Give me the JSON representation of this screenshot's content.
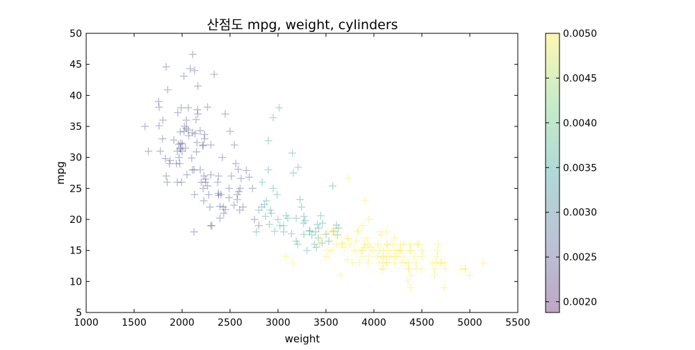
{
  "chart_data": {
    "type": "scatter",
    "title": "산점도 mpg, weight, cylinders",
    "xlabel": "weight",
    "ylabel": "mpg",
    "xlim": [
      1000,
      5500
    ],
    "ylim": [
      5,
      50
    ],
    "xticks": [
      1000,
      1500,
      2000,
      2500,
      3000,
      3500,
      4000,
      4500,
      5000,
      5500
    ],
    "yticks": [
      5,
      10,
      15,
      20,
      25,
      30,
      35,
      40,
      45,
      50
    ],
    "grid": false,
    "marker": "+",
    "marker_alpha": 0.35,
    "colorbar": {
      "range": [
        0.00188,
        0.005
      ],
      "ticks": [
        0.002,
        0.0025,
        0.003,
        0.0035,
        0.004,
        0.0045,
        0.005
      ],
      "tick_labels": [
        "0.0020",
        "0.0025",
        "0.0030",
        "0.0035",
        "0.0040",
        "0.0045",
        "0.0050"
      ],
      "colormap": "viridis",
      "colors": [
        "#440154",
        "#3b528b",
        "#21918c",
        "#5ec962",
        "#fde725"
      ]
    },
    "groups": [
      {
        "color_value": 0.0025,
        "points": [
          [
            1613,
            35
          ],
          [
            1649,
            31
          ],
          [
            1755,
            39
          ],
          [
            1760,
            35.1
          ],
          [
            1773,
            31
          ],
          [
            1795,
            33
          ],
          [
            1800,
            36
          ],
          [
            1825,
            29.8
          ],
          [
            1834,
            44.6
          ],
          [
            1835,
            27
          ],
          [
            1845,
            26
          ],
          [
            1850,
            40.9
          ],
          [
            1867,
            29
          ],
          [
            1875,
            29.5
          ],
          [
            1915,
            32.8
          ],
          [
            1940,
            29
          ],
          [
            1950,
            31
          ],
          [
            1950,
            26
          ],
          [
            1955,
            37.2
          ],
          [
            1965,
            32.1
          ],
          [
            1968,
            30
          ],
          [
            1975,
            29
          ],
          [
            1980,
            34.1
          ],
          [
            1985,
            31.3
          ],
          [
            1990,
            38
          ],
          [
            1995,
            26
          ],
          [
            2000,
            31
          ],
          [
            2003,
            32.2
          ],
          [
            2019,
            43.1
          ],
          [
            2020,
            34.2
          ],
          [
            2025,
            35
          ],
          [
            2035,
            31.5
          ],
          [
            2045,
            36
          ],
          [
            2050,
            27.2
          ],
          [
            2065,
            34.4
          ],
          [
            2070,
            33.5
          ],
          [
            2085,
            44.3
          ],
          [
            2100,
            29.9
          ],
          [
            2110,
            46.6
          ],
          [
            2125,
            28
          ],
          [
            2130,
            24
          ],
          [
            2130,
            44.0
          ],
          [
            2135,
            33.8
          ],
          [
            2145,
            36.1
          ],
          [
            2150,
            30.9
          ],
          [
            2155,
            32.4
          ],
          [
            2164,
            41.5
          ],
          [
            2160,
            37.7
          ],
          [
            2188,
            34.3
          ],
          [
            2189,
            28
          ],
          [
            2200,
            26
          ],
          [
            2215,
            31.9
          ],
          [
            2220,
            25
          ],
          [
            2226,
            23
          ],
          [
            2228,
            27
          ],
          [
            2234,
            33
          ],
          [
            2245,
            26
          ],
          [
            2265,
            25.4
          ],
          [
            2278,
            24
          ],
          [
            2290,
            22
          ],
          [
            2300,
            32
          ],
          [
            2310,
            19
          ],
          [
            2335,
            43.4
          ],
          [
            2372,
            26
          ],
          [
            2380,
            27
          ],
          [
            2395,
            20.2
          ],
          [
            2405,
            24
          ],
          [
            2420,
            30
          ],
          [
            2430,
            22
          ],
          [
            2434,
            21
          ],
          [
            2450,
            37
          ],
          [
            2490,
            25
          ],
          [
            2500,
            34.2
          ],
          [
            2515,
            27
          ],
          [
            2545,
            32
          ],
          [
            2560,
            29
          ],
          [
            2575,
            24
          ],
          [
            2585,
            28.1
          ],
          [
            2600,
            21.5
          ],
          [
            2605,
            25
          ],
          [
            2615,
            26.6
          ],
          [
            2635,
            22
          ],
          [
            2670,
            27.9
          ],
          [
            2700,
            26.8
          ],
          [
            2735,
            25
          ],
          [
            2755,
            20
          ],
          [
            2800,
            19
          ],
          [
            2125,
            18
          ],
          [
            2300,
            19
          ],
          [
            1985,
            32.3
          ],
          [
            2045,
            34.7
          ],
          [
            2110,
            34
          ],
          [
            2065,
            38
          ],
          [
            2164,
            37
          ],
          [
            1760,
            38.1
          ],
          [
            2234,
            33.7
          ],
          [
            2265,
            38.1
          ],
          [
            1980,
            31.5
          ],
          [
            2220,
            32
          ],
          [
            2108,
            28
          ],
          [
            2246,
            26.5
          ],
          [
            2379,
            24.2
          ],
          [
            2542,
            22.3
          ],
          [
            2300,
            27.2
          ],
          [
            2592,
            24.5
          ],
          [
            2380,
            23.9
          ],
          [
            2395,
            22.1
          ],
          [
            2450,
            21.6
          ],
          [
            2575,
            23.2
          ],
          [
            2490,
            23.5
          ]
        ]
      },
      {
        "color_value": 0.0035,
        "points": [
          [
            2774,
            18
          ],
          [
            2800,
            21.5
          ],
          [
            2830,
            22
          ],
          [
            2900,
            32.7
          ],
          [
            2930,
            21
          ],
          [
            2950,
            36.4
          ],
          [
            2965,
            18.1
          ],
          [
            2990,
            24
          ],
          [
            3012,
            38
          ],
          [
            3060,
            18
          ],
          [
            3102,
            20.2
          ],
          [
            3150,
            30.7
          ],
          [
            3160,
            27.5
          ],
          [
            3190,
            16.5
          ],
          [
            3210,
            28.4
          ],
          [
            3245,
            22
          ],
          [
            3265,
            19.4
          ],
          [
            3270,
            17.6
          ],
          [
            3282,
            19.8
          ],
          [
            3302,
            15
          ],
          [
            3353,
            17.5
          ],
          [
            3380,
            16
          ],
          [
            3410,
            19.2
          ],
          [
            3425,
            18.6
          ],
          [
            3445,
            20.6
          ],
          [
            3460,
            16.2
          ],
          [
            3530,
            16.5
          ],
          [
            3570,
            25.4
          ],
          [
            3580,
            18.1
          ],
          [
            3620,
            17.5
          ],
          [
            2880,
            23
          ],
          [
            2910,
            19.2
          ],
          [
            3020,
            19
          ],
          [
            3085,
            20.6
          ],
          [
            3140,
            17.7
          ],
          [
            3205,
            16
          ],
          [
            3270,
            20.5
          ],
          [
            3330,
            18.2
          ],
          [
            3390,
            18
          ],
          [
            3465,
            19.4
          ],
          [
            2835,
            26
          ],
          [
            2900,
            28
          ],
          [
            2950,
            25
          ],
          [
            3000,
            20
          ],
          [
            2858,
            22.4
          ],
          [
            2870,
            20.5
          ],
          [
            2920,
            21.5
          ],
          [
            3060,
            19
          ],
          [
            3190,
            20.2
          ],
          [
            3230,
            23.2
          ],
          [
            3330,
            18.1
          ],
          [
            3420,
            17
          ],
          [
            3400,
            15.5
          ],
          [
            3500,
            17.6
          ],
          [
            3610,
            19.1
          ],
          [
            3630,
            18.6
          ]
        ]
      },
      {
        "color_value": 0.005,
        "points": [
          [
            3085,
            14
          ],
          [
            3155,
            13
          ],
          [
            3430,
            16
          ],
          [
            3445,
            17
          ],
          [
            3504,
            14
          ],
          [
            3520,
            15
          ],
          [
            3563,
            18
          ],
          [
            3564,
            15
          ],
          [
            3600,
            17.5
          ],
          [
            3609,
            16
          ],
          [
            3651,
            11
          ],
          [
            3664,
            16
          ],
          [
            3690,
            15.5
          ],
          [
            3725,
            17
          ],
          [
            3735,
            26.6
          ],
          [
            3755,
            16
          ],
          [
            3781,
            13
          ],
          [
            3797,
            15
          ],
          [
            3815,
            16.5
          ],
          [
            3830,
            18
          ],
          [
            3850,
            13
          ],
          [
            3870,
            14
          ],
          [
            3880,
            15
          ],
          [
            3900,
            16
          ],
          [
            3907,
            23
          ],
          [
            3925,
            17
          ],
          [
            3940,
            13
          ],
          [
            3950,
            20
          ],
          [
            3962,
            15.5
          ],
          [
            4036,
            14
          ],
          [
            4042,
            16
          ],
          [
            4054,
            13
          ],
          [
            4055,
            15
          ],
          [
            4060,
            18
          ],
          [
            4080,
            17.5
          ],
          [
            4082,
            14
          ],
          [
            4096,
            13
          ],
          [
            4098,
            12
          ],
          [
            4100,
            15
          ],
          [
            4129,
            13
          ],
          [
            4135,
            14
          ],
          [
            4140,
            16
          ],
          [
            4141,
            13
          ],
          [
            4150,
            15
          ],
          [
            4190,
            16
          ],
          [
            4215,
            17
          ],
          [
            4220,
            14
          ],
          [
            4237,
            14
          ],
          [
            4257,
            15
          ],
          [
            4274,
            15
          ],
          [
            4278,
            16
          ],
          [
            4294,
            13
          ],
          [
            4312,
            16
          ],
          [
            4335,
            13
          ],
          [
            4354,
            10
          ],
          [
            4360,
            13
          ],
          [
            4363,
            12
          ],
          [
            4376,
            15
          ],
          [
            4380,
            16
          ],
          [
            4382,
            9
          ],
          [
            4385,
            11
          ],
          [
            4425,
            14
          ],
          [
            4440,
            13
          ],
          [
            4456,
            16
          ],
          [
            4464,
            16
          ],
          [
            4499,
            12
          ],
          [
            4502,
            14
          ],
          [
            4615,
            13
          ],
          [
            4633,
            11
          ],
          [
            4654,
            13
          ],
          [
            4657,
            14
          ],
          [
            4668,
            16
          ],
          [
            4699,
            13
          ],
          [
            4732,
            9
          ],
          [
            4735,
            13
          ],
          [
            4746,
            12
          ],
          [
            4906,
            12
          ],
          [
            4951,
            12
          ],
          [
            4955,
            12
          ],
          [
            4997,
            11
          ],
          [
            5140,
            13
          ],
          [
            4082,
            12
          ],
          [
            4130,
            16
          ],
          [
            3870,
            15
          ],
          [
            4215,
            13
          ],
          [
            4360,
            12
          ],
          [
            4440,
            12
          ],
          [
            3725,
            13.5
          ],
          [
            4100,
            14
          ],
          [
            3988,
            15
          ],
          [
            4285,
            15
          ],
          [
            3940,
            16
          ],
          [
            4310,
            14
          ],
          [
            4165,
            14
          ],
          [
            4380,
            15
          ],
          [
            4500,
            15
          ],
          [
            4700,
            13
          ],
          [
            4633,
            12
          ],
          [
            4664,
            15
          ],
          [
            4129,
            18
          ],
          [
            4210,
            15
          ],
          [
            3880,
            19
          ],
          [
            3520,
            18
          ],
          [
            3950,
            14
          ],
          [
            3730,
            16.9
          ],
          [
            3840,
            18.2
          ],
          [
            3595,
            18.5
          ],
          [
            3672,
            16.2
          ],
          [
            3900,
            15.5
          ]
        ]
      }
    ]
  }
}
